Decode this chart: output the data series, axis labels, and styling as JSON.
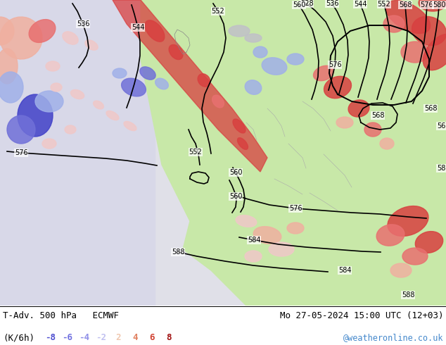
{
  "title_left": "T-Adv. 500 hPa   ECMWF",
  "title_right": "Mo 27-05-2024 15:00 UTC (12+03)",
  "subtitle_left": "(K/6h)",
  "subtitle_right": "@weatheronline.co.uk",
  "colorbar_labels": [
    "-8",
    "-6",
    "-4",
    "-2",
    "2",
    "4",
    "6",
    "8"
  ],
  "colorbar_colors": [
    "#5050d0",
    "#7070e0",
    "#9090e8",
    "#c0c0f0",
    "#f0c8b0",
    "#e08060",
    "#d04030",
    "#a01010"
  ],
  "background_color": "#ffffff",
  "figsize": [
    6.34,
    4.9
  ],
  "dpi": 100,
  "img_url": "https://www.weatheronline.co.uk/wetterkarte/2024/05/27/T-Adv_500_ECMWF_2024052715_12.gif"
}
